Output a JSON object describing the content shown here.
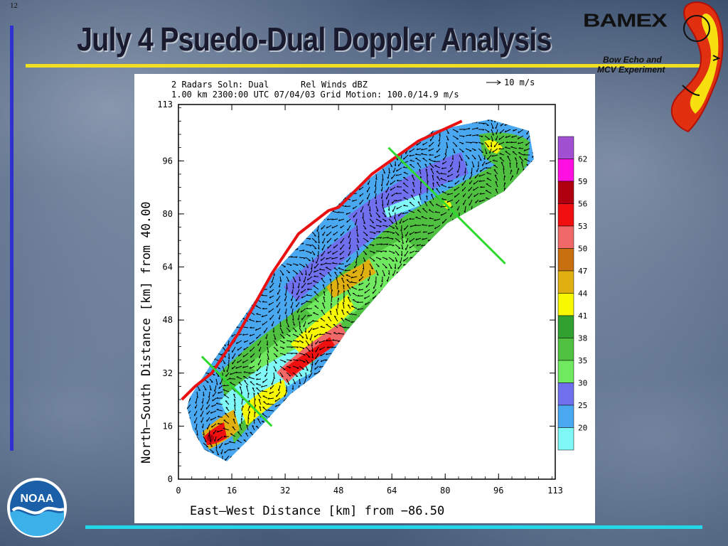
{
  "slide": {
    "number": "12",
    "title": "July 4 Psuedo-Dual Doppler Analysis"
  },
  "logo": {
    "name": "BAMEX",
    "subtitle_line1": "Bow Echo and",
    "subtitle_line2": "MCV Experiment"
  },
  "noaa_logo": {
    "text": "NOAA"
  },
  "chart_data": {
    "type": "heatmap",
    "header_line1_left": "2 Radars Soln: Dual",
    "header_line1_mid": "Rel Winds  dBZ",
    "header_line1_right": "10 m/s",
    "header_line2": "1.00 km 2300:00 UTC   07/04/03  Grid Motion: 100.0/14.9 m/s",
    "xlabel": "East—West Distance [km] from  −86.50",
    "ylabel": "North—South Distance [km] from  40.00",
    "x_ticks": [
      "0",
      "16",
      "32",
      "48",
      "64",
      "80",
      "96",
      "113"
    ],
    "y_ticks": [
      "0",
      "16",
      "32",
      "48",
      "64",
      "80",
      "96",
      "113"
    ],
    "xlim": [
      0,
      113
    ],
    "ylim": [
      0,
      113
    ],
    "colorbar": {
      "labels": [
        "62",
        "59",
        "56",
        "53",
        "50",
        "47",
        "44",
        "41",
        "38",
        "35",
        "30",
        "25",
        "20"
      ],
      "colors": [
        "#a050d0",
        "#ff10e0",
        "#b00010",
        "#f01010",
        "#f06868",
        "#c87010",
        "#e0b010",
        "#f8f800",
        "#30a030",
        "#50c040",
        "#70e860",
        "#7070ee",
        "#4aa8f0",
        "#80f8f8"
      ]
    },
    "front_line": [
      [
        1,
        24
      ],
      [
        5,
        28
      ],
      [
        10,
        32
      ],
      [
        18,
        44
      ],
      [
        28,
        62
      ],
      [
        36,
        74
      ],
      [
        45,
        81
      ],
      [
        48,
        82
      ],
      [
        58,
        92
      ],
      [
        72,
        102
      ],
      [
        85,
        108
      ]
    ],
    "cross_sections": [
      [
        [
          7,
          37
        ],
        [
          28,
          16
        ]
      ],
      [
        [
          63,
          100
        ],
        [
          98,
          65
        ]
      ]
    ]
  }
}
